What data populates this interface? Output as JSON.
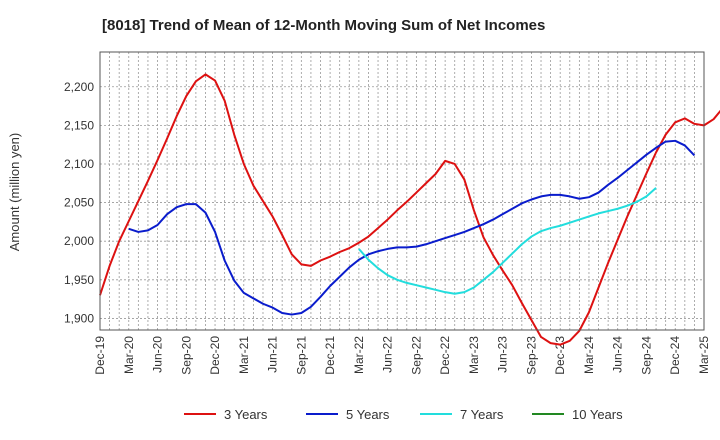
{
  "chart_data": {
    "type": "line",
    "title": "[8018]  Trend of Mean of 12-Month Moving Sum of Net Incomes",
    "ylabel": "Amount (million yen)",
    "ylim": [
      1885,
      2245
    ],
    "yticks": [
      1900,
      1950,
      2000,
      2050,
      2100,
      2150,
      2200
    ],
    "ytick_labels": [
      "1,900",
      "1,950",
      "2,000",
      "2,050",
      "2,100",
      "2,150",
      "2,200"
    ],
    "x_labels": [
      "Dec-19",
      "Mar-20",
      "Jun-20",
      "Sep-20",
      "Dec-20",
      "Mar-21",
      "Jun-21",
      "Sep-21",
      "Dec-21",
      "Mar-22",
      "Jun-22",
      "Sep-22",
      "Dec-22",
      "Mar-23",
      "Jun-23",
      "Sep-23",
      "Dec-23",
      "Mar-24",
      "Jun-24",
      "Sep-24",
      "Dec-24",
      "Mar-25"
    ],
    "x_start": "Dec-19",
    "legend_position": "bottom",
    "grid": true,
    "series": [
      {
        "name": "3 Years",
        "color": "#dd1111",
        "values": [
          1930,
          1968,
          2000,
          2026,
          2052,
          2078,
          2105,
          2133,
          2162,
          2188,
          2207,
          2216,
          2208,
          2182,
          2138,
          2100,
          2072,
          2052,
          2032,
          2008,
          1983,
          1970,
          1968,
          1975,
          1980,
          1986,
          1991,
          1998,
          2006,
          2017,
          2028,
          2040,
          2051,
          2063,
          2075,
          2087,
          2104,
          2100,
          2080,
          2040,
          2005,
          1982,
          1962,
          1943,
          1920,
          1898,
          1876,
          1868,
          1866,
          1871,
          1884,
          1908,
          1940,
          1972,
          2002,
          2032,
          2060,
          2088,
          2115,
          2138,
          2154,
          2159,
          2152,
          2150,
          2158,
          2173
        ]
      },
      {
        "name": "5 Years",
        "color": "#0a1ccc",
        "values": [
          null,
          null,
          null,
          2016,
          2012,
          2014,
          2021,
          2035,
          2044,
          2048,
          2048,
          2037,
          2012,
          1975,
          1949,
          1933,
          1926,
          1919,
          1914,
          1907,
          1905,
          1907,
          1915,
          1928,
          1942,
          1954,
          1966,
          1976,
          1983,
          1987,
          1990,
          1992,
          1992,
          1993,
          1996,
          2000,
          2004,
          2008,
          2012,
          2017,
          2022,
          2028,
          2035,
          2042,
          2049,
          2054,
          2058,
          2060,
          2060,
          2058,
          2055,
          2057,
          2063,
          2073,
          2082,
          2092,
          2102,
          2112,
          2121,
          2129,
          2130,
          2124,
          2111
        ]
      },
      {
        "name": "7 Years",
        "color": "#22dddd",
        "values": [
          null,
          null,
          null,
          null,
          null,
          null,
          null,
          null,
          null,
          null,
          null,
          null,
          null,
          null,
          null,
          null,
          null,
          null,
          null,
          null,
          null,
          null,
          null,
          null,
          null,
          null,
          null,
          1990,
          1976,
          1965,
          1956,
          1950,
          1946,
          1943,
          1940,
          1937,
          1934,
          1932,
          1934,
          1940,
          1950,
          1960,
          1972,
          1984,
          1996,
          2006,
          2013,
          2017,
          2020,
          2024,
          2028,
          2032,
          2036,
          2039,
          2042,
          2046,
          2051,
          2058,
          2069
        ]
      },
      {
        "name": "10 Years",
        "color": "#228822",
        "values": []
      }
    ]
  }
}
